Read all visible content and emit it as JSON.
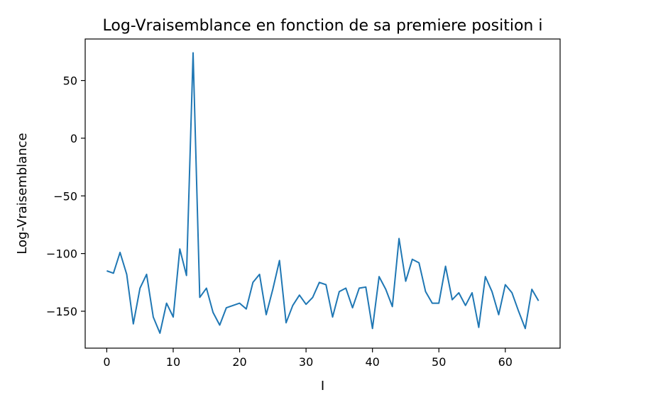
{
  "chart_data": {
    "type": "line",
    "title": "Log-Vraisemblance en fonction de sa premiere position i",
    "xlabel": "I",
    "ylabel": "Log-Vraisemblance",
    "xlim": [
      -3.25,
      68.25
    ],
    "ylim": [
      -182,
      86
    ],
    "xticks": [
      0,
      10,
      20,
      30,
      40,
      50,
      60
    ],
    "yticks": [
      50,
      0,
      -50,
      -100,
      -150
    ],
    "xtick_labels": [
      "0",
      "10",
      "20",
      "30",
      "40",
      "50",
      "60"
    ],
    "ytick_labels": [
      "50",
      "0",
      "−50",
      "−100",
      "−150"
    ],
    "grid": false,
    "series": [
      {
        "color": "#1f77b4",
        "x": [
          0,
          1,
          2,
          3,
          4,
          5,
          6,
          7,
          8,
          9,
          10,
          11,
          12,
          13,
          14,
          15,
          16,
          17,
          18,
          19,
          20,
          21,
          22,
          23,
          24,
          25,
          26,
          27,
          28,
          29,
          30,
          31,
          32,
          33,
          34,
          35,
          36,
          37,
          38,
          39,
          40,
          41,
          42,
          43,
          44,
          45,
          46,
          47,
          48,
          49,
          50,
          51,
          52,
          53,
          54,
          55,
          56,
          57,
          58,
          59,
          60,
          61,
          62,
          63,
          64,
          65
        ],
        "y": [
          -115,
          -117,
          -99,
          -118,
          -161,
          -130,
          -118,
          -155,
          -169,
          -143,
          -155,
          -96,
          -119,
          74,
          -138,
          -130,
          -151,
          -162,
          -147,
          -145,
          -143,
          -148,
          -125,
          -118,
          -153,
          -131,
          -106,
          -160,
          -145,
          -136,
          -144,
          -138,
          -125,
          -127,
          -155,
          -133,
          -130,
          -147,
          -130,
          -129,
          -165,
          -120,
          -131,
          -146,
          -87,
          -124,
          -105,
          -108,
          -133,
          -143,
          -143,
          -111,
          -140,
          -134,
          -145,
          -134,
          -164,
          -120,
          -133,
          -153,
          -127,
          -134,
          -150,
          -165,
          -131,
          -141
        ]
      }
    ]
  }
}
